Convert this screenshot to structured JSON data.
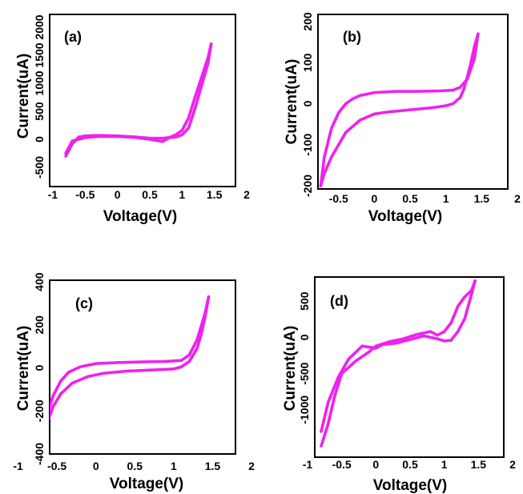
{
  "chart_data": [
    {
      "type": "scatter",
      "panel_label": "(a)",
      "xlabel": "Voltage(V)",
      "ylabel": "Current(uA)",
      "xlim": [
        -1,
        2
      ],
      "ylim": [
        -500,
        2000
      ],
      "xticks": [
        "-1",
        "-0.5",
        "0",
        "0.5",
        "1",
        "1.5",
        "2"
      ],
      "yticks": [
        "-500",
        "0",
        "500",
        "1000",
        "1500",
        "2000"
      ],
      "color": "#ee22ee",
      "series": [
        {
          "x": [
            -0.8,
            -0.7,
            -0.6,
            -0.5,
            -0.3,
            0,
            0.3,
            0.5,
            0.7,
            0.9,
            1.0,
            1.1,
            1.2,
            1.3,
            1.4,
            1.45
          ],
          "y": [
            -300,
            -80,
            40,
            60,
            70,
            60,
            40,
            20,
            20,
            40,
            80,
            200,
            550,
            950,
            1350,
            1700
          ]
        },
        {
          "x": [
            1.45,
            1.4,
            1.3,
            1.2,
            1.1,
            1.0,
            0.9,
            0.8,
            0.7,
            0.5,
            0.3,
            0,
            -0.3,
            -0.5,
            -0.7,
            -0.8
          ],
          "y": [
            1700,
            1450,
            1100,
            750,
            380,
            160,
            80,
            30,
            -40,
            0,
            30,
            50,
            50,
            30,
            -30,
            -250
          ]
        }
      ]
    },
    {
      "type": "scatter",
      "panel_label": "(b)",
      "xlabel": "Voltage(V)",
      "ylabel": "Current(uA)",
      "xlim": [
        -0.8,
        2
      ],
      "ylim": [
        -200,
        200
      ],
      "xticks": [
        "-0.5",
        "0",
        "0.5",
        "1",
        "1.5",
        "2"
      ],
      "yticks": [
        "-200",
        "-100",
        "0",
        "100",
        "200"
      ],
      "color": "#ee22ee",
      "series": [
        {
          "x": [
            -0.75,
            -0.7,
            -0.6,
            -0.5,
            -0.4,
            -0.3,
            -0.2,
            0,
            0.3,
            0.6,
            0.9,
            1.1,
            1.2,
            1.3,
            1.4,
            1.45
          ],
          "y": [
            -200,
            -130,
            -60,
            -22,
            0,
            12,
            20,
            27,
            30,
            30,
            31,
            33,
            40,
            60,
            110,
            170
          ]
        },
        {
          "x": [
            1.45,
            1.4,
            1.35,
            1.3,
            1.25,
            1.2,
            1.1,
            1.0,
            0.8,
            0.5,
            0.2,
            0,
            -0.2,
            -0.4,
            -0.5,
            -0.6,
            -0.7,
            -0.75
          ],
          "y": [
            170,
            140,
            100,
            65,
            35,
            15,
            0,
            -5,
            -10,
            -15,
            -20,
            -25,
            -40,
            -70,
            -100,
            -130,
            -170,
            -200
          ]
        }
      ]
    },
    {
      "type": "scatter",
      "panel_label": "(c)",
      "xlabel": "Voltage(V)",
      "ylabel": "Current(uA)",
      "xlim": [
        -0.8,
        2
      ],
      "ylim": [
        -400,
        400
      ],
      "xticks": [
        "-1",
        "-0.5",
        "0",
        "0.5",
        "1",
        "1.5",
        "2"
      ],
      "yticks": [
        "-400",
        "-200",
        "0",
        "200",
        "400"
      ],
      "color": "#ee22ee",
      "series": [
        {
          "x": [
            -0.72,
            -0.65,
            -0.55,
            -0.45,
            -0.35,
            -0.2,
            0,
            0.3,
            0.6,
            0.9,
            1.1,
            1.2,
            1.3,
            1.4,
            1.45
          ],
          "y": [
            -400,
            -250,
            -130,
            -60,
            -20,
            5,
            20,
            25,
            28,
            30,
            35,
            60,
            130,
            250,
            330
          ]
        },
        {
          "x": [
            1.45,
            1.4,
            1.35,
            1.3,
            1.2,
            1.1,
            1.0,
            0.7,
            0.4,
            0.1,
            -0.1,
            -0.3,
            -0.45,
            -0.55,
            -0.65,
            -0.72
          ],
          "y": [
            330,
            230,
            150,
            90,
            30,
            5,
            -5,
            -10,
            -15,
            -25,
            -40,
            -70,
            -120,
            -180,
            -280,
            -400
          ]
        }
      ]
    },
    {
      "type": "scatter",
      "panel_label": "(d)",
      "xlabel": "Voltage(V)",
      "ylabel": "Current(uA)",
      "xlim": [
        -1,
        2
      ],
      "ylim": [
        -1600,
        900
      ],
      "xticks": [
        "-1",
        "-0.5",
        "0",
        "0.5",
        "1",
        "1.5",
        "2"
      ],
      "yticks": [
        "500",
        "0",
        "-500",
        "-1000"
      ],
      "color": "#ee22ee",
      "series": [
        {
          "x": [
            -0.8,
            -0.7,
            -0.6,
            -0.5,
            -0.3,
            -0.1,
            0,
            0.2,
            0.4,
            0.6,
            0.8,
            0.9,
            1.0,
            1.1,
            1.2,
            1.3,
            1.4,
            1.45
          ],
          "y": [
            -1500,
            -1200,
            -800,
            -500,
            -330,
            -200,
            -120,
            -60,
            -20,
            40,
            80,
            30,
            80,
            200,
            430,
            560,
            650,
            780
          ]
        },
        {
          "x": [
            1.45,
            1.4,
            1.35,
            1.3,
            1.2,
            1.1,
            1.0,
            0.9,
            0.7,
            0.5,
            0.3,
            0.1,
            0,
            -0.2,
            -0.4,
            -0.55,
            -0.7,
            -0.8
          ],
          "y": [
            780,
            600,
            430,
            260,
            80,
            -40,
            -50,
            -20,
            20,
            -30,
            -80,
            -100,
            -150,
            -120,
            -300,
            -550,
            -900,
            -1300
          ]
        }
      ]
    }
  ]
}
